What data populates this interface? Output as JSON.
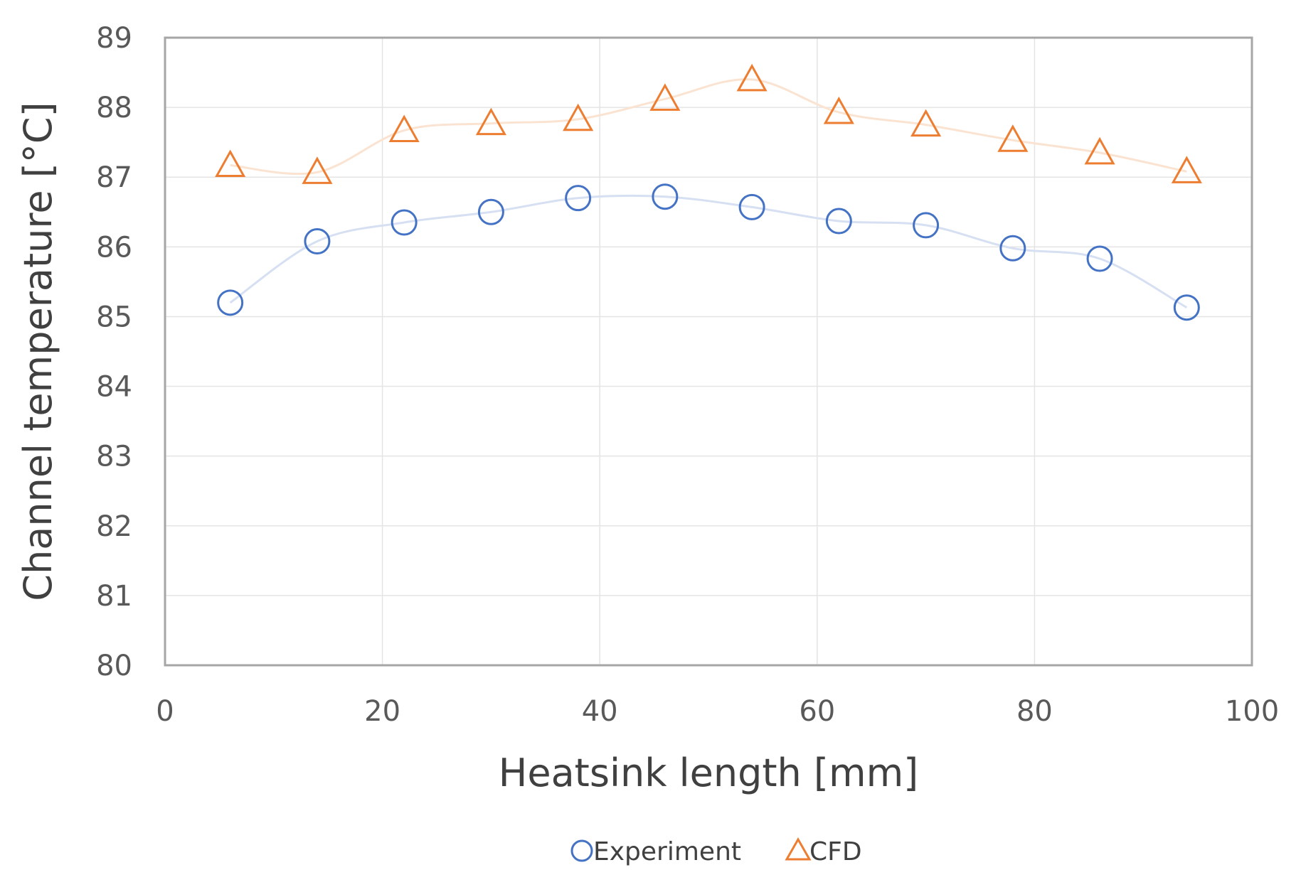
{
  "chart_data": {
    "type": "scatter",
    "title": "",
    "xlabel": "Heatsink length [mm]",
    "ylabel": "Channel temperature [°C]",
    "xlim": [
      0,
      100
    ],
    "ylim": [
      80,
      89
    ],
    "xticks": [
      0,
      20,
      40,
      60,
      80,
      100
    ],
    "yticks": [
      80,
      81,
      82,
      83,
      84,
      85,
      86,
      87,
      88,
      89
    ],
    "grid": true,
    "legend_position": "bottom",
    "x": [
      6,
      14,
      22,
      30,
      38,
      46,
      54,
      62,
      70,
      78,
      86,
      94
    ],
    "series": [
      {
        "name": "Experiment",
        "marker": "circle",
        "color": "#4472C4",
        "line_color": "#D6E0F2",
        "values": [
          85.2,
          86.08,
          86.35,
          86.5,
          86.7,
          86.72,
          86.57,
          86.37,
          86.31,
          85.98,
          85.83,
          85.13
        ]
      },
      {
        "name": "CFD",
        "marker": "triangle",
        "color": "#ED7D31",
        "line_color": "#FBE3D2",
        "values": [
          87.17,
          87.07,
          87.67,
          87.77,
          87.83,
          88.12,
          88.4,
          87.93,
          87.75,
          87.53,
          87.35,
          87.08
        ]
      }
    ]
  }
}
